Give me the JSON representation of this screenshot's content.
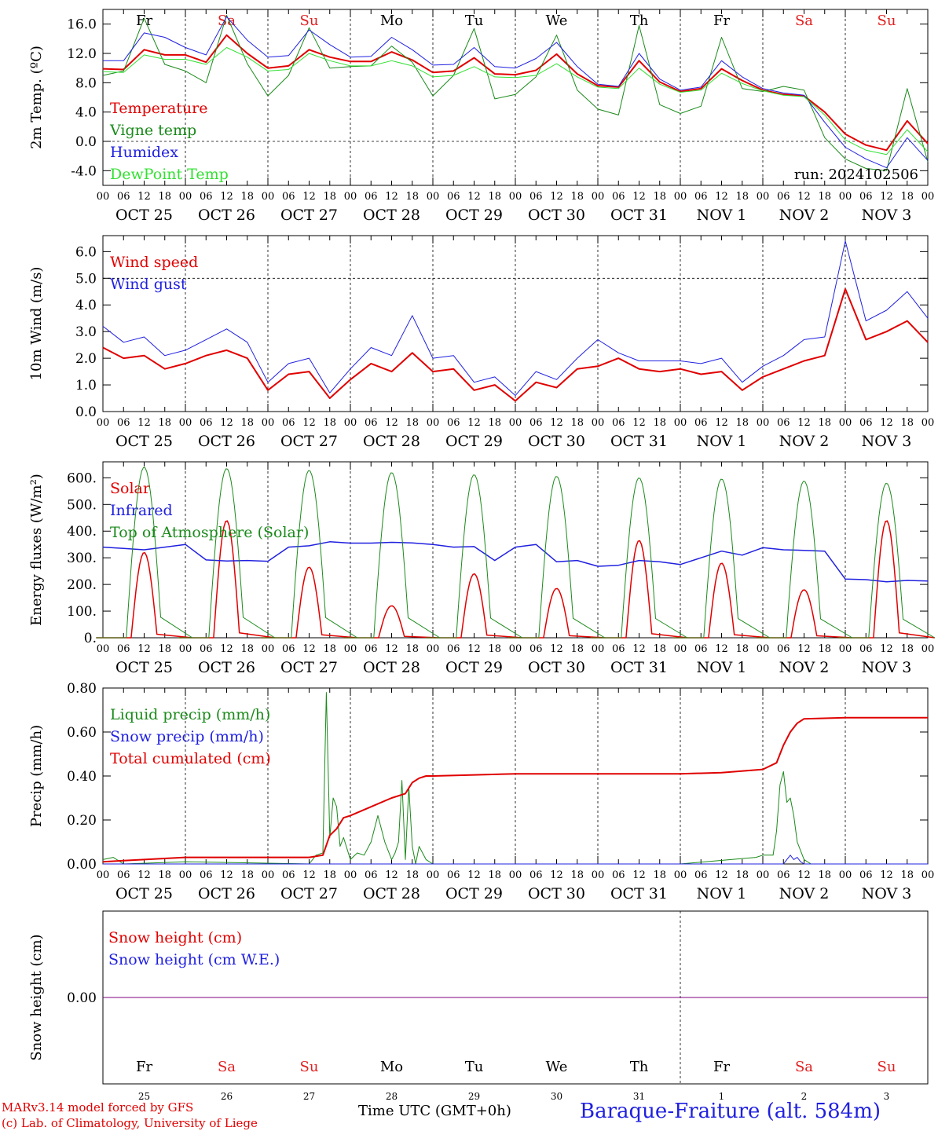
{
  "footer": {
    "model": "MARv3.14 model forced by GFS",
    "copyright": "(c) Lab. of Climatology, University of Liege",
    "axis_title": "Time UTC (GMT+0h)",
    "station": "Baraque-Fraiture (alt. 584m)"
  },
  "days": [
    {
      "date": "OCT 25",
      "dow": "Fr",
      "weekend": false,
      "num": "25"
    },
    {
      "date": "OCT 26",
      "dow": "Sa",
      "weekend": true,
      "num": "26"
    },
    {
      "date": "OCT 27",
      "dow": "Su",
      "weekend": true,
      "num": "27"
    },
    {
      "date": "OCT 28",
      "dow": "Mo",
      "weekend": false,
      "num": "28"
    },
    {
      "date": "OCT 29",
      "dow": "Tu",
      "weekend": false,
      "num": "29"
    },
    {
      "date": "OCT 30",
      "dow": "We",
      "weekend": false,
      "num": "30"
    },
    {
      "date": "OCT 31",
      "dow": "Th",
      "weekend": false,
      "num": "31"
    },
    {
      "date": "NOV  1",
      "dow": "Fr",
      "weekend": false,
      "num": "1"
    },
    {
      "date": "NOV  2",
      "dow": "Sa",
      "weekend": true,
      "num": "2"
    },
    {
      "date": "NOV  3",
      "dow": "Su",
      "weekend": true,
      "num": "3"
    }
  ],
  "hour_ticks": [
    "00",
    "06",
    "12",
    "18"
  ],
  "bottom_month_labels": [
    "OCT",
    "NOV"
  ],
  "colors": {
    "red": "#e00000",
    "green": "#1a8a1a",
    "blue": "#2020e0",
    "lightgreen": "#33e033",
    "purple": "#800080",
    "weekend": "#e02020"
  },
  "chart_data": [
    {
      "type": "line",
      "title": "",
      "ylabel": "2m Temp. (ºC)",
      "ylim": [
        -6.0,
        18.0
      ],
      "yticks": [
        "-4.0",
        "0.0",
        "4.0",
        "8.0",
        "12.0",
        "16.0"
      ],
      "ytick_values": [
        -4,
        0,
        4,
        8,
        12,
        16
      ],
      "dashed_h": [
        0
      ],
      "annotation": "run: 2024102506",
      "series": [
        {
          "name": "Temperature",
          "color": "red",
          "width": 2,
          "x": [
            0,
            6,
            12,
            18,
            24,
            30,
            36,
            42,
            48,
            54,
            60,
            66,
            72,
            78,
            84,
            90,
            96,
            102,
            108,
            114,
            120,
            126,
            132,
            138,
            144,
            150,
            156,
            162,
            168,
            174,
            180,
            186,
            192,
            198,
            204,
            210,
            216,
            222,
            228,
            234,
            240
          ],
          "y": [
            9.9,
            9.8,
            12.5,
            11.8,
            11.8,
            10.8,
            14.5,
            12.0,
            10.0,
            10.3,
            12.5,
            11.5,
            10.9,
            10.9,
            12.2,
            11.1,
            9.4,
            9.6,
            11.4,
            9.2,
            9.1,
            9.7,
            11.9,
            9.2,
            7.6,
            7.4,
            11.0,
            8.1,
            6.8,
            7.2,
            9.9,
            8.3,
            7.0,
            6.4,
            6.2,
            4.0,
            1.0,
            -0.5,
            -1.2,
            2.8,
            -0.3
          ]
        },
        {
          "name": "Vigne temp",
          "color": "green",
          "width": 1,
          "x": [
            0,
            6,
            12,
            18,
            24,
            30,
            36,
            42,
            48,
            54,
            60,
            66,
            72,
            78,
            84,
            90,
            96,
            102,
            108,
            114,
            120,
            126,
            132,
            138,
            144,
            150,
            156,
            162,
            168,
            174,
            180,
            186,
            192,
            198,
            204,
            210,
            216,
            222,
            228,
            234,
            240
          ],
          "y": [
            9.0,
            9.6,
            16.8,
            10.5,
            9.6,
            8.0,
            17.2,
            10.6,
            6.2,
            9.0,
            15.5,
            10.0,
            10.2,
            10.3,
            13.0,
            10.8,
            6.2,
            9.0,
            15.4,
            5.8,
            6.4,
            8.8,
            14.5,
            7.0,
            4.4,
            3.6,
            15.8,
            5.0,
            3.8,
            4.8,
            14.2,
            7.2,
            6.8,
            7.5,
            7.0,
            0.5,
            -2.4,
            -3.7,
            -4.0,
            7.2,
            -2.8
          ]
        },
        {
          "name": "Humidex",
          "color": "blue",
          "width": 1,
          "x": [
            0,
            6,
            12,
            18,
            24,
            30,
            36,
            42,
            48,
            54,
            60,
            66,
            72,
            78,
            84,
            90,
            96,
            102,
            108,
            114,
            120,
            126,
            132,
            138,
            144,
            150,
            156,
            162,
            168,
            174,
            180,
            186,
            192,
            198,
            204,
            210,
            216,
            222,
            228,
            234,
            240
          ],
          "y": [
            11.0,
            11.0,
            14.8,
            14.2,
            12.8,
            11.8,
            17.0,
            13.8,
            11.5,
            11.7,
            15.2,
            13.2,
            11.5,
            11.6,
            14.2,
            12.5,
            10.4,
            10.5,
            12.8,
            10.2,
            10.0,
            11.3,
            13.5,
            10.2,
            7.8,
            7.5,
            12.0,
            8.5,
            7.0,
            7.4,
            11.0,
            8.8,
            7.2,
            6.6,
            6.3,
            2.6,
            -0.8,
            -2.4,
            -3.6,
            0.5,
            -2.6
          ]
        },
        {
          "name": "DewPoint Temp",
          "color": "lightgreen",
          "width": 1,
          "x": [
            0,
            6,
            12,
            18,
            24,
            30,
            36,
            42,
            48,
            54,
            60,
            66,
            72,
            78,
            84,
            90,
            96,
            102,
            108,
            114,
            120,
            126,
            132,
            138,
            144,
            150,
            156,
            162,
            168,
            174,
            180,
            186,
            192,
            198,
            204,
            210,
            216,
            222,
            228,
            234,
            240
          ],
          "y": [
            9.5,
            9.4,
            11.8,
            11.2,
            11.2,
            10.5,
            12.8,
            11.5,
            9.6,
            9.8,
            12.0,
            11.0,
            10.3,
            10.3,
            11.0,
            10.3,
            8.8,
            9.0,
            10.2,
            8.8,
            8.7,
            9.0,
            10.6,
            8.8,
            7.4,
            7.2,
            10.0,
            7.8,
            6.7,
            7.0,
            9.3,
            7.9,
            6.9,
            6.3,
            6.1,
            3.6,
            0.2,
            -1.2,
            -1.8,
            1.6,
            -1.4
          ]
        }
      ]
    },
    {
      "type": "line",
      "title": "",
      "ylabel": "10m Wind (m/s)",
      "ylim": [
        0,
        6.6
      ],
      "yticks": [
        "0.0",
        "1.0",
        "2.0",
        "3.0",
        "4.0",
        "5.0",
        "6.0"
      ],
      "ytick_values": [
        0,
        1,
        2,
        3,
        4,
        5,
        6
      ],
      "dashed_h": [
        5
      ],
      "annotation": "",
      "series": [
        {
          "name": "Wind speed",
          "color": "red",
          "width": 2,
          "x": [
            0,
            6,
            12,
            18,
            24,
            30,
            36,
            42,
            48,
            54,
            60,
            66,
            72,
            78,
            84,
            90,
            96,
            102,
            108,
            114,
            120,
            126,
            132,
            138,
            144,
            150,
            156,
            162,
            168,
            174,
            180,
            186,
            192,
            198,
            204,
            210,
            216,
            222,
            228,
            234,
            240
          ],
          "y": [
            2.4,
            2.0,
            2.1,
            1.6,
            1.8,
            2.1,
            2.3,
            2.0,
            0.8,
            1.4,
            1.5,
            0.5,
            1.2,
            1.8,
            1.5,
            2.2,
            1.5,
            1.6,
            0.8,
            1.0,
            0.4,
            1.1,
            0.9,
            1.6,
            1.7,
            2.0,
            1.6,
            1.5,
            1.6,
            1.4,
            1.5,
            0.8,
            1.3,
            1.6,
            1.9,
            2.1,
            4.6,
            2.7,
            3.0,
            3.4,
            2.6
          ],
          "dashes": ""
        },
        {
          "name": "Wind gust",
          "color": "blue",
          "width": 1,
          "x": [
            0,
            6,
            12,
            18,
            24,
            30,
            36,
            42,
            48,
            54,
            60,
            66,
            72,
            78,
            84,
            90,
            96,
            102,
            108,
            114,
            120,
            126,
            132,
            138,
            144,
            150,
            156,
            162,
            168,
            174,
            180,
            186,
            192,
            198,
            204,
            210,
            216,
            222,
            228,
            234,
            240
          ],
          "y": [
            3.2,
            2.6,
            2.8,
            2.1,
            2.3,
            2.7,
            3.1,
            2.6,
            1.1,
            1.8,
            2.0,
            0.7,
            1.6,
            2.4,
            2.1,
            3.6,
            2.0,
            2.1,
            1.1,
            1.3,
            0.6,
            1.5,
            1.2,
            2.0,
            2.7,
            2.2,
            1.9,
            1.9,
            1.9,
            1.8,
            2.0,
            1.1,
            1.7,
            2.1,
            2.7,
            2.8,
            6.4,
            3.4,
            3.8,
            4.5,
            3.5
          ]
        }
      ]
    },
    {
      "type": "line",
      "title": "",
      "ylabel": "Energy fluxes (W/m²)",
      "ylim": [
        0,
        660
      ],
      "yticks": [
        "0.",
        "100.",
        "200.",
        "300.",
        "400.",
        "500.",
        "600."
      ],
      "ytick_values": [
        0,
        100,
        200,
        300,
        400,
        500,
        600
      ],
      "dashed_h": [],
      "annotation": "",
      "series": [
        {
          "name": "Solar",
          "color": "red",
          "width": 1.5,
          "peaks_day": [
            320,
            440,
            265,
            120,
            240,
            185,
            365,
            280,
            180,
            440
          ]
        },
        {
          "name": "Infrared",
          "color": "blue",
          "width": 1.5,
          "x": [
            0,
            6,
            12,
            18,
            24,
            30,
            36,
            42,
            48,
            54,
            60,
            66,
            72,
            78,
            84,
            90,
            96,
            102,
            108,
            114,
            120,
            126,
            132,
            138,
            144,
            150,
            156,
            162,
            168,
            174,
            180,
            186,
            192,
            198,
            204,
            210,
            216,
            222,
            228,
            234,
            240
          ],
          "y": [
            340,
            335,
            330,
            340,
            350,
            292,
            288,
            290,
            287,
            340,
            345,
            360,
            355,
            355,
            358,
            356,
            350,
            340,
            342,
            290,
            340,
            350,
            285,
            290,
            268,
            272,
            290,
            285,
            275,
            300,
            325,
            310,
            338,
            330,
            328,
            325,
            220,
            218,
            210,
            215,
            213
          ]
        },
        {
          "name": "Top of Atmosphere (Solar)",
          "color": "green",
          "width": 1,
          "peaks_day": [
            640,
            635,
            628,
            620,
            612,
            606,
            600,
            596,
            588,
            580
          ]
        }
      ]
    },
    {
      "type": "line",
      "title": "",
      "ylabel": "Precip (mm/h)",
      "ylim": [
        0,
        0.8
      ],
      "yticks": [
        "0.00",
        "0.20",
        "0.40",
        "0.60",
        "0.80"
      ],
      "ytick_values": [
        0,
        0.2,
        0.4,
        0.6,
        0.8
      ],
      "dashed_h": [],
      "annotation": "",
      "series": [
        {
          "name": "Liquid precip (mm/h)",
          "color": "green",
          "width": 1,
          "x": [
            0,
            3,
            6,
            24,
            60,
            62,
            64,
            65,
            66,
            67,
            68,
            69,
            70,
            72,
            74,
            76,
            78,
            80,
            82,
            84,
            85,
            86,
            87,
            88,
            89,
            90,
            91,
            92,
            94,
            96,
            120,
            144,
            168,
            190,
            192,
            195,
            196,
            197,
            198,
            199,
            200,
            201,
            202,
            204,
            206,
            240
          ],
          "y": [
            0.02,
            0.03,
            0.0,
            0.01,
            0.0,
            0.04,
            0.05,
            0.78,
            0.12,
            0.3,
            0.26,
            0.08,
            0.12,
            0.02,
            0.05,
            0.04,
            0.1,
            0.22,
            0.1,
            0.02,
            0.05,
            0.1,
            0.38,
            0.02,
            0.35,
            0.08,
            0.0,
            0.08,
            0.02,
            0.0,
            0.0,
            0.0,
            0.0,
            0.03,
            0.04,
            0.04,
            0.15,
            0.36,
            0.42,
            0.28,
            0.3,
            0.22,
            0.1,
            0.02,
            0.0,
            0.0
          ]
        },
        {
          "name": "Snow precip (mm/h)",
          "color": "blue",
          "width": 1,
          "x": [
            0,
            198,
            199,
            200,
            201,
            202,
            203,
            204,
            240
          ],
          "y": [
            0,
            0,
            0.02,
            0.04,
            0.02,
            0.03,
            0.01,
            0,
            0
          ]
        },
        {
          "name": "Total cumulated (cm)",
          "color": "red",
          "width": 2,
          "x": [
            0,
            6,
            12,
            24,
            48,
            60,
            64,
            66,
            68,
            70,
            72,
            78,
            84,
            88,
            90,
            92,
            94,
            96,
            108,
            120,
            144,
            168,
            180,
            192,
            196,
            198,
            200,
            202,
            204,
            216,
            240
          ],
          "y": [
            0.01,
            0.015,
            0.02,
            0.03,
            0.03,
            0.03,
            0.04,
            0.13,
            0.16,
            0.21,
            0.22,
            0.26,
            0.3,
            0.32,
            0.37,
            0.39,
            0.4,
            0.4,
            0.405,
            0.41,
            0.41,
            0.41,
            0.415,
            0.43,
            0.46,
            0.54,
            0.6,
            0.64,
            0.66,
            0.665,
            0.665
          ]
        }
      ]
    },
    {
      "type": "line",
      "title": "",
      "ylabel": "Snow height (cm)",
      "ylim": [
        -1,
        1
      ],
      "yticks": [
        "0.00"
      ],
      "ytick_values": [
        0
      ],
      "dashed_h": [],
      "annotation": "",
      "series": [
        {
          "name": "Snow height (cm)",
          "color": "red",
          "width": 1,
          "x": [
            0,
            240
          ],
          "y": [
            0,
            0
          ]
        },
        {
          "name": "Snow height (cm W.E.)",
          "color": "blue",
          "width": 1,
          "x": [
            0,
            240
          ],
          "y": [
            0,
            0
          ]
        }
      ]
    }
  ]
}
